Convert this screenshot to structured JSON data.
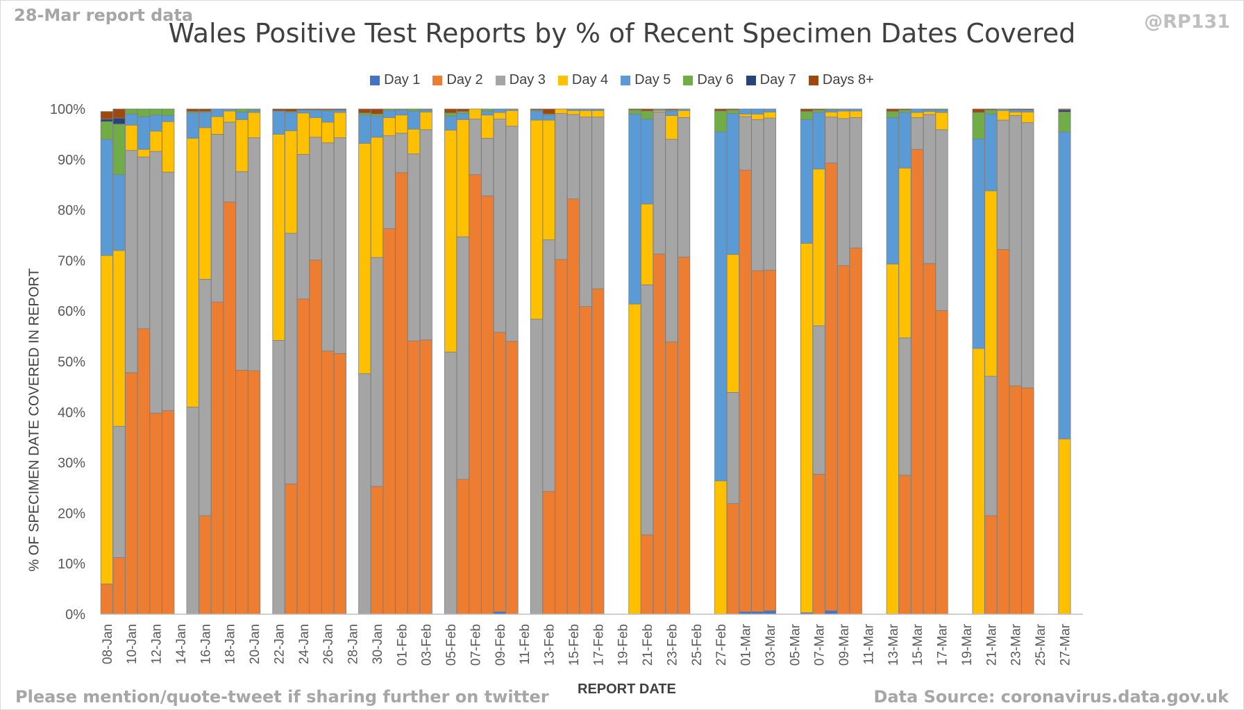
{
  "header": {
    "report_label": "28-Mar report data",
    "handle": "@RP131"
  },
  "footer": {
    "note": "Please mention/quote-tweet if sharing further on twitter",
    "source": "Data Source: coronavirus.data.gov.uk"
  },
  "chart_data": {
    "type": "bar",
    "stacked": true,
    "title": "Wales Positive Test Reports by % of Recent Specimen Dates Covered",
    "xlabel": "REPORT DATE",
    "ylabel": "% OF SPECIMEN DATE COVERED IN REPORT",
    "ylim": [
      0,
      100
    ],
    "yticks": [
      "0%",
      "10%",
      "20%",
      "30%",
      "40%",
      "50%",
      "60%",
      "70%",
      "80%",
      "90%",
      "100%"
    ],
    "grid": false,
    "legend_position": "top",
    "series": [
      {
        "name": "Day 1",
        "color": "#4472c4"
      },
      {
        "name": "Day 2",
        "color": "#ed7d31"
      },
      {
        "name": "Day 3",
        "color": "#a5a5a5"
      },
      {
        "name": "Day 4",
        "color": "#ffc000"
      },
      {
        "name": "Day 5",
        "color": "#5b9bd5"
      },
      {
        "name": "Day 6",
        "color": "#70ad47"
      },
      {
        "name": "Day 7",
        "color": "#264478"
      },
      {
        "name": "Days 8+",
        "color": "#9e480e"
      }
    ],
    "categories": [
      "08-Jan",
      "09-Jan",
      "10-Jan",
      "11-Jan",
      "12-Jan",
      "13-Jan",
      "14-Jan",
      "15-Jan",
      "16-Jan",
      "17-Jan",
      "18-Jan",
      "19-Jan",
      "20-Jan",
      "21-Jan",
      "22-Jan",
      "23-Jan",
      "24-Jan",
      "25-Jan",
      "26-Jan",
      "27-Jan",
      "28-Jan",
      "29-Jan",
      "30-Jan",
      "31-Jan",
      "01-Feb",
      "02-Feb",
      "03-Feb",
      "04-Feb",
      "05-Feb",
      "06-Feb",
      "07-Feb",
      "08-Feb",
      "09-Feb",
      "10-Feb",
      "11-Feb",
      "12-Feb",
      "13-Feb",
      "14-Feb",
      "15-Feb",
      "16-Feb",
      "17-Feb",
      "18-Feb",
      "19-Feb",
      "20-Feb",
      "21-Feb",
      "22-Feb",
      "23-Feb",
      "24-Feb",
      "25-Feb",
      "26-Feb",
      "27-Feb",
      "28-Feb",
      "01-Mar",
      "02-Mar",
      "03-Mar",
      "04-Mar",
      "05-Mar",
      "06-Mar",
      "07-Mar",
      "08-Mar",
      "09-Mar",
      "10-Mar",
      "11-Mar",
      "12-Mar",
      "13-Mar",
      "14-Mar",
      "15-Mar",
      "16-Mar",
      "17-Mar",
      "18-Mar",
      "19-Mar",
      "20-Mar",
      "21-Mar",
      "22-Mar",
      "23-Mar",
      "24-Mar",
      "25-Mar",
      "26-Mar",
      "27-Mar",
      "28-Mar"
    ],
    "tick_labels": [
      "08-Jan",
      "10-Jan",
      "12-Jan",
      "14-Jan",
      "16-Jan",
      "18-Jan",
      "20-Jan",
      "22-Jan",
      "24-Jan",
      "26-Jan",
      "28-Jan",
      "30-Jan",
      "01-Feb",
      "03-Feb",
      "05-Feb",
      "07-Feb",
      "09-Feb",
      "11-Feb",
      "13-Feb",
      "15-Feb",
      "17-Feb",
      "19-Feb",
      "21-Feb",
      "23-Feb",
      "25-Feb",
      "27-Feb",
      "01-Mar",
      "03-Mar",
      "05-Mar",
      "07-Mar",
      "09-Mar",
      "11-Mar",
      "13-Mar",
      "15-Mar",
      "17-Mar",
      "19-Mar",
      "21-Mar",
      "23-Mar",
      "25-Mar",
      "27-Mar"
    ],
    "bars": [
      [
        0,
        6,
        0,
        65,
        23,
        3.5,
        0.5,
        1.5
      ],
      [
        0,
        11.2,
        26,
        34.8,
        15,
        10,
        1.2,
        1.8
      ],
      [
        0,
        47.8,
        44,
        5,
        2.2,
        1,
        0,
        0
      ],
      [
        0,
        56.5,
        34,
        1.5,
        6.5,
        1.5,
        0,
        0
      ],
      [
        0,
        39.8,
        51.8,
        4,
        3.2,
        1.2,
        0,
        0
      ],
      [
        0,
        40.3,
        47.2,
        10,
        1.2,
        1.3,
        0,
        0
      ],
      null,
      [
        0,
        0,
        41,
        53.2,
        5,
        0.3,
        0,
        0.5
      ],
      [
        0,
        19.5,
        46.8,
        30,
        3,
        0.2,
        0,
        0.5
      ],
      [
        0,
        61.8,
        33.2,
        3.5,
        1.5,
        0,
        0,
        0
      ],
      [
        0,
        81.6,
        15.8,
        2.2,
        0.4,
        0,
        0,
        0
      ],
      [
        0,
        48.3,
        39.3,
        10.3,
        1.5,
        0.6,
        0,
        0
      ],
      [
        0,
        48.2,
        46.1,
        5,
        0.4,
        0.3,
        0,
        0
      ],
      null,
      [
        0,
        0,
        54.2,
        40.8,
        4.6,
        0,
        0,
        0.4
      ],
      [
        0,
        25.8,
        49.6,
        20.3,
        3.6,
        0.2,
        0,
        0.5
      ],
      [
        0,
        62.4,
        28.6,
        8.2,
        0.6,
        0,
        0,
        0.2
      ],
      [
        0,
        70.1,
        24.3,
        3.9,
        1.5,
        0,
        0,
        0.2
      ],
      [
        0,
        52.1,
        41.2,
        4.1,
        2.2,
        0.2,
        0,
        0.2
      ],
      [
        0,
        51.6,
        42.7,
        5,
        0.5,
        0,
        0,
        0.2
      ],
      null,
      [
        0,
        0,
        47.6,
        45.6,
        5.6,
        0.4,
        0,
        0.8
      ],
      [
        0,
        25.3,
        45.3,
        23.8,
        4.2,
        0.4,
        0,
        1
      ],
      [
        0,
        76.3,
        18.4,
        3.6,
        1.4,
        0.3,
        0,
        0
      ],
      [
        0,
        87.4,
        7.8,
        3.6,
        1,
        0.2,
        0,
        0
      ],
      [
        0,
        54.1,
        37,
        4.9,
        3.6,
        0.4,
        0,
        0
      ],
      [
        0,
        54.3,
        41.6,
        3.5,
        0.4,
        0.2,
        0,
        0
      ],
      null,
      [
        0,
        0,
        51.9,
        43.9,
        2.8,
        0.6,
        0,
        0.8
      ],
      [
        0,
        26.7,
        48,
        23.2,
        1.2,
        0.4,
        0,
        0.5
      ],
      [
        0,
        87,
        11,
        2,
        0,
        0,
        0,
        0
      ],
      [
        0,
        82.8,
        11.4,
        4.6,
        0.8,
        0.4,
        0,
        0
      ],
      [
        0.5,
        55.3,
        42.2,
        1.3,
        0.7,
        0,
        0,
        0
      ],
      [
        0,
        54,
        42.6,
        3.1,
        0.3,
        0,
        0,
        0
      ],
      null,
      [
        0,
        0,
        58.4,
        39.4,
        1.8,
        0.2,
        0,
        0.2
      ],
      [
        0,
        24.3,
        49.8,
        23.7,
        1,
        0.2,
        0,
        1
      ],
      [
        0,
        70.2,
        28.9,
        0.9,
        0,
        0,
        0,
        0
      ],
      [
        0,
        82.2,
        16.7,
        0.8,
        0.3,
        0,
        0,
        0
      ],
      [
        0,
        60.9,
        37.5,
        1.3,
        0.3,
        0,
        0,
        0
      ],
      [
        0,
        64.4,
        34,
        1.3,
        0.3,
        0,
        0,
        0
      ],
      null,
      null,
      [
        0,
        0,
        0,
        61.4,
        37.6,
        0.8,
        0,
        0.2
      ],
      [
        0,
        15.7,
        49.5,
        16,
        16.8,
        1.6,
        0,
        0.4
      ],
      [
        0,
        71.3,
        28.1,
        0.3,
        0.3,
        0,
        0,
        0
      ],
      [
        0,
        53.9,
        40.1,
        4.7,
        0.9,
        0.2,
        0,
        0.2
      ],
      [
        0,
        70.7,
        27.6,
        1.4,
        0.3,
        0,
        0,
        0
      ],
      null,
      null,
      [
        0,
        0,
        0,
        26.4,
        69.1,
        4.1,
        0,
        0.4
      ],
      [
        0,
        21.9,
        22,
        27.3,
        27.9,
        0.7,
        0,
        0.2
      ],
      [
        0.5,
        87.4,
        10.6,
        0.5,
        1.0,
        0,
        0,
        0
      ],
      [
        0.5,
        67.5,
        29.9,
        1.1,
        1.0,
        0,
        0,
        0
      ],
      [
        0.7,
        67.4,
        30.1,
        1.2,
        0.6,
        0,
        0,
        0
      ],
      null,
      null,
      [
        0.3,
        0,
        0,
        73.1,
        24.5,
        1.6,
        0,
        0.5
      ],
      [
        0,
        27.7,
        29.4,
        31,
        11.2,
        0.5,
        0,
        0.2
      ],
      [
        0.7,
        88.6,
        9.1,
        1,
        0.4,
        0.2,
        0,
        0
      ],
      [
        0,
        69,
        29.1,
        1.5,
        0.4,
        0,
        0,
        0
      ],
      [
        0,
        72.5,
        25.8,
        1.3,
        0.4,
        0,
        0,
        0
      ],
      null,
      null,
      [
        0,
        0,
        0,
        69.3,
        29,
        1.2,
        0,
        0.5
      ],
      [
        0,
        27.5,
        27.2,
        33.6,
        11,
        0.5,
        0,
        0.2
      ],
      [
        0,
        92,
        6.3,
        1,
        0.7,
        0,
        0,
        0
      ],
      [
        0,
        69.4,
        29.5,
        0.6,
        0.4,
        0.1,
        0,
        0
      ],
      [
        0,
        60.1,
        35.8,
        3.4,
        0.5,
        0.2,
        0,
        0
      ],
      null,
      null,
      [
        0,
        0,
        0,
        52.6,
        41.5,
        5.2,
        0,
        0.7
      ],
      [
        0,
        19.5,
        27.6,
        36.7,
        15.2,
        0.8,
        0,
        0.2
      ],
      [
        0,
        72.2,
        25.6,
        1.9,
        0.3,
        0,
        0,
        0
      ],
      [
        0,
        45.2,
        53.5,
        0.7,
        0.4,
        0,
        0,
        0.2
      ],
      [
        0,
        44.8,
        52.5,
        2.1,
        0.4,
        0,
        0,
        0.2
      ],
      null,
      null,
      [
        0,
        0,
        0,
        34.7,
        60.8,
        3.9,
        0.4,
        0.2
      ],
      null
    ]
  }
}
